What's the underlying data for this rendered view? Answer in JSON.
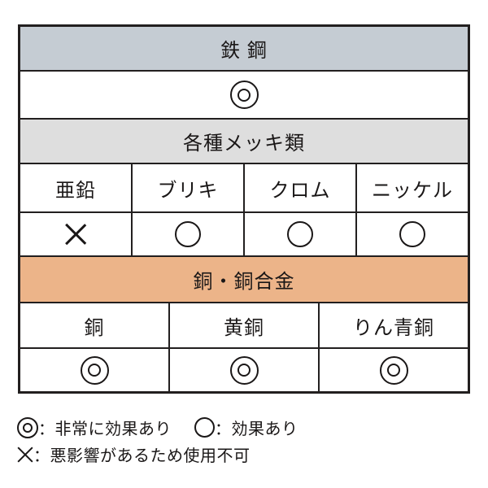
{
  "colors": {
    "steel_header_bg": "#c5ccd3",
    "plating_header_bg": "#dedede",
    "copper_header_bg": "#ecb489",
    "border": "#221f1f",
    "text": "#1a1717"
  },
  "chart_data": {
    "type": "table",
    "sections": [
      {
        "header": "鉄 鋼",
        "header_bg": "#c5ccd3",
        "columns": [],
        "ratings": [
          "double-circle"
        ]
      },
      {
        "header": "各種メッキ類",
        "header_bg": "#dedede",
        "columns": [
          "亜鉛",
          "ブリキ",
          "クロム",
          "ニッケル"
        ],
        "ratings": [
          "cross",
          "circle",
          "circle",
          "circle"
        ]
      },
      {
        "header": "銅・銅合金",
        "header_bg": "#ecb489",
        "columns": [
          "銅",
          "黄銅",
          "りん青銅"
        ],
        "ratings": [
          "double-circle",
          "double-circle",
          "double-circle"
        ]
      }
    ],
    "legend": {
      "rows": [
        [
          {
            "symbol": "double-circle",
            "text": "：非常に効果あり"
          },
          {
            "symbol": "circle",
            "text": "：効果あり"
          }
        ],
        [
          {
            "symbol": "cross",
            "text": "：悪影響があるため使用不可"
          }
        ]
      ]
    }
  }
}
